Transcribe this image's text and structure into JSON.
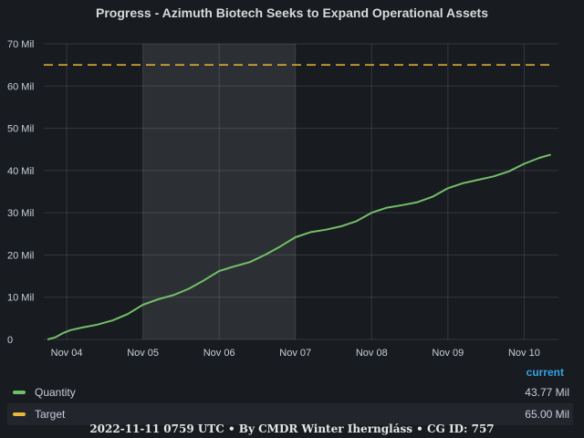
{
  "chart_data": {
    "type": "line",
    "title": "Progress - Azimuth Biotech Seeks to Expand Operational Assets",
    "y_ticks": [
      "0",
      "10 Mil",
      "20 Mil",
      "30 Mil",
      "40 Mil",
      "50 Mil",
      "60 Mil",
      "70 Mil"
    ],
    "x_ticks": [
      "Nov 04",
      "Nov 05",
      "Nov 06",
      "Nov 07",
      "Nov 08",
      "Nov 09",
      "Nov 10"
    ],
    "ylim": [
      0,
      70
    ],
    "y_unit": "Mil",
    "xlim": [
      3.7,
      10.45
    ],
    "grid": true,
    "highlight_region": {
      "from": 5.0,
      "to": 7.0
    },
    "series": [
      {
        "name": "Quantity",
        "color": "#73bf69",
        "x": [
          3.75,
          3.85,
          3.95,
          4.05,
          4.2,
          4.4,
          4.6,
          4.8,
          5.0,
          5.2,
          5.4,
          5.6,
          5.8,
          6.0,
          6.2,
          6.4,
          6.6,
          6.8,
          7.0,
          7.2,
          7.4,
          7.6,
          7.8,
          8.0,
          8.2,
          8.4,
          8.6,
          8.8,
          9.0,
          9.2,
          9.4,
          9.6,
          9.8,
          10.0,
          10.2,
          10.35
        ],
        "y": [
          0.0,
          0.5,
          1.5,
          2.2,
          2.8,
          3.5,
          4.5,
          6.0,
          8.2,
          9.5,
          10.5,
          12.0,
          14.0,
          16.2,
          17.3,
          18.3,
          20.0,
          22.0,
          24.2,
          25.4,
          26.0,
          26.8,
          28.0,
          30.0,
          31.2,
          31.8,
          32.5,
          33.8,
          35.8,
          37.0,
          37.8,
          38.6,
          39.8,
          41.6,
          43.0,
          43.77
        ]
      },
      {
        "name": "Target",
        "color": "#eab839",
        "x": [
          3.7,
          10.4
        ],
        "y": [
          65.0,
          65.0
        ]
      }
    ]
  },
  "legend": {
    "header": "current",
    "items": [
      {
        "name": "Quantity",
        "value": "43.77 Mil",
        "color": "#73bf69"
      },
      {
        "name": "Target",
        "value": "65.00 Mil",
        "color": "#eab839"
      }
    ]
  },
  "footer": "2022-11-11 0759 UTC • By CMDR Winter Iherngláss • CG ID: 757"
}
